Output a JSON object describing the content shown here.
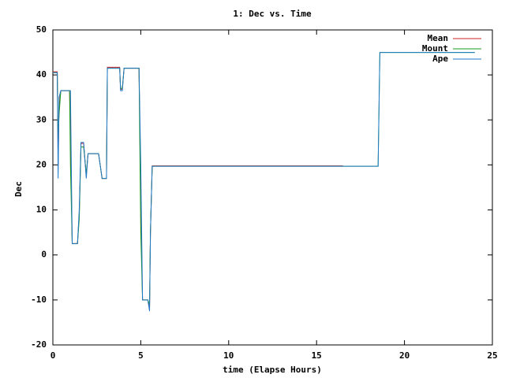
{
  "chart_data": {
    "type": "line",
    "title": "1: Dec vs. Time",
    "x_label": "time (Elapse Hours)",
    "y_label": "Dec",
    "x": [
      0,
      0.25,
      0.3,
      0.35,
      0.45,
      0.95,
      1.0,
      1.1,
      1.4,
      1.5,
      1.6,
      1.75,
      1.9,
      2.0,
      2.6,
      2.8,
      3.05,
      3.1,
      3.8,
      3.85,
      3.95,
      4.05,
      4.9,
      5.0,
      5.1,
      5.4,
      5.5,
      5.55,
      5.65,
      16.5,
      18.5,
      18.6,
      24
    ],
    "series": [
      {
        "name": "Mean",
        "color": "#cc2222",
        "values": [
          40.7,
          40.7,
          20,
          33,
          36.5,
          36.5,
          28,
          2.5,
          2.5,
          9,
          24.8,
          24.8,
          17.5,
          22.5,
          22.5,
          17,
          17,
          41.7,
          41.7,
          36.8,
          36.8,
          41.5,
          41.5,
          12,
          -10,
          -10,
          -11.5,
          5,
          19.8,
          19.8,
          null,
          null,
          null
        ]
      },
      {
        "name": "Mount",
        "color": "#1a9a1a",
        "values": [
          40.5,
          40.5,
          25,
          31,
          36.5,
          36.5,
          20,
          2.5,
          2.5,
          8,
          24,
          24,
          18,
          22.5,
          22.5,
          17,
          17,
          41.5,
          41.5,
          37,
          37,
          41.5,
          41.5,
          5,
          -10,
          -10,
          -11,
          5,
          19.7,
          19.7,
          19.7,
          45,
          45
        ]
      },
      {
        "name": "Ape",
        "color": "#1f78c8",
        "values": [
          40.5,
          40.5,
          17,
          35,
          36.5,
          36.5,
          36.5,
          2.5,
          2.5,
          10,
          25,
          25,
          17,
          22.5,
          22.5,
          17,
          17,
          41.5,
          41.5,
          36.5,
          36.5,
          41.5,
          41.5,
          20,
          -10,
          -10,
          -12.5,
          5,
          19.7,
          19.7,
          19.7,
          45,
          45
        ]
      }
    ],
    "xlim": [
      0,
      25
    ],
    "xticks": [
      0,
      5,
      10,
      15,
      20,
      25
    ],
    "ylim": [
      -20,
      50
    ],
    "yticks": [
      -20,
      -10,
      0,
      10,
      20,
      30,
      40,
      50
    ],
    "grid": false,
    "legend_position": "top-right"
  }
}
